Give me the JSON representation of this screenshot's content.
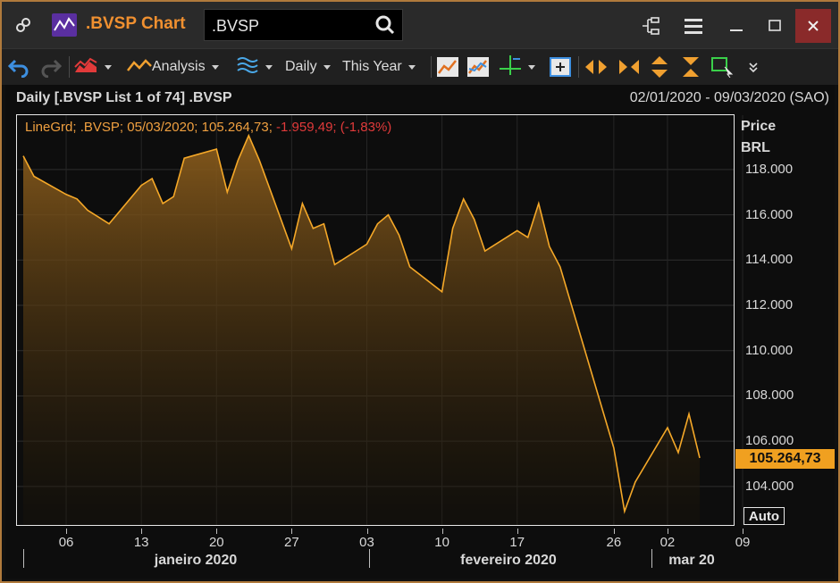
{
  "titlebar": {
    "title": ".BVSP Chart",
    "search_value": ".BVSP",
    "link_icon": "link-icon",
    "app_icon": "line-chart-icon"
  },
  "toolbar": {
    "analysis_label": "Analysis",
    "interval_label": "Daily",
    "period_label": "This Year"
  },
  "chart": {
    "header": "Daily [.BVSP List 1 of 74] .BVSP",
    "range": "02/01/2020 - 09/03/2020 (SAO)",
    "legend_main": "LineGrd; .BVSP; 05/03/2020; 105.264,73;",
    "legend_change": "-1.959,49; (-1,83%)",
    "unit_line1": "Price",
    "unit_line2": "BRL",
    "last_price_label": "105.264,73",
    "auto_label": "Auto",
    "months": [
      "janeiro 2020",
      "fevereiro 2020",
      "mar 20"
    ]
  },
  "colors": {
    "accent": "#f0a030",
    "negative": "#e03a3a",
    "titlebar": "#2a2a2a",
    "close": "#8a2a2a"
  },
  "chart_data": {
    "type": "area",
    "series": [
      {
        "name": ".BVSP",
        "x": [
          "02/01",
          "03/01",
          "06/01",
          "07/01",
          "08/01",
          "09/01",
          "10/01",
          "13/01",
          "14/01",
          "15/01",
          "16/01",
          "17/01",
          "20/01",
          "21/01",
          "22/01",
          "23/01",
          "24/01",
          "27/01",
          "28/01",
          "29/01",
          "30/01",
          "31/01",
          "03/02",
          "04/02",
          "05/02",
          "06/02",
          "07/02",
          "10/02",
          "11/02",
          "12/02",
          "13/02",
          "14/02",
          "17/02",
          "18/02",
          "19/02",
          "20/02",
          "21/02",
          "26/02",
          "27/02",
          "28/02",
          "02/03",
          "03/03",
          "04/03",
          "05/03"
        ],
        "values": [
          118.6,
          117.7,
          116.9,
          116.7,
          116.2,
          115.9,
          115.6,
          117.3,
          117.6,
          116.5,
          116.8,
          118.5,
          118.9,
          117.0,
          118.4,
          119.5,
          118.4,
          114.5,
          116.5,
          115.4,
          115.6,
          113.8,
          114.7,
          115.6,
          116.0,
          115.1,
          113.7,
          112.6,
          115.4,
          116.7,
          115.8,
          114.4,
          115.3,
          115.0,
          116.5,
          114.6,
          113.7,
          105.7,
          102.9,
          104.2,
          106.6,
          105.5,
          107.2,
          105.26
        ]
      }
    ],
    "x_tick_labels": [
      "06",
      "13",
      "20",
      "27",
      "03",
      "10",
      "17",
      "26",
      "02",
      "09"
    ],
    "y_tick_labels": [
      "104.000",
      "106.000",
      "108.000",
      "110.000",
      "112.000",
      "114.000",
      "116.000",
      "118.000"
    ],
    "ylim": [
      102.3,
      120.4
    ],
    "last_value": "105.264,73",
    "grid": true
  }
}
